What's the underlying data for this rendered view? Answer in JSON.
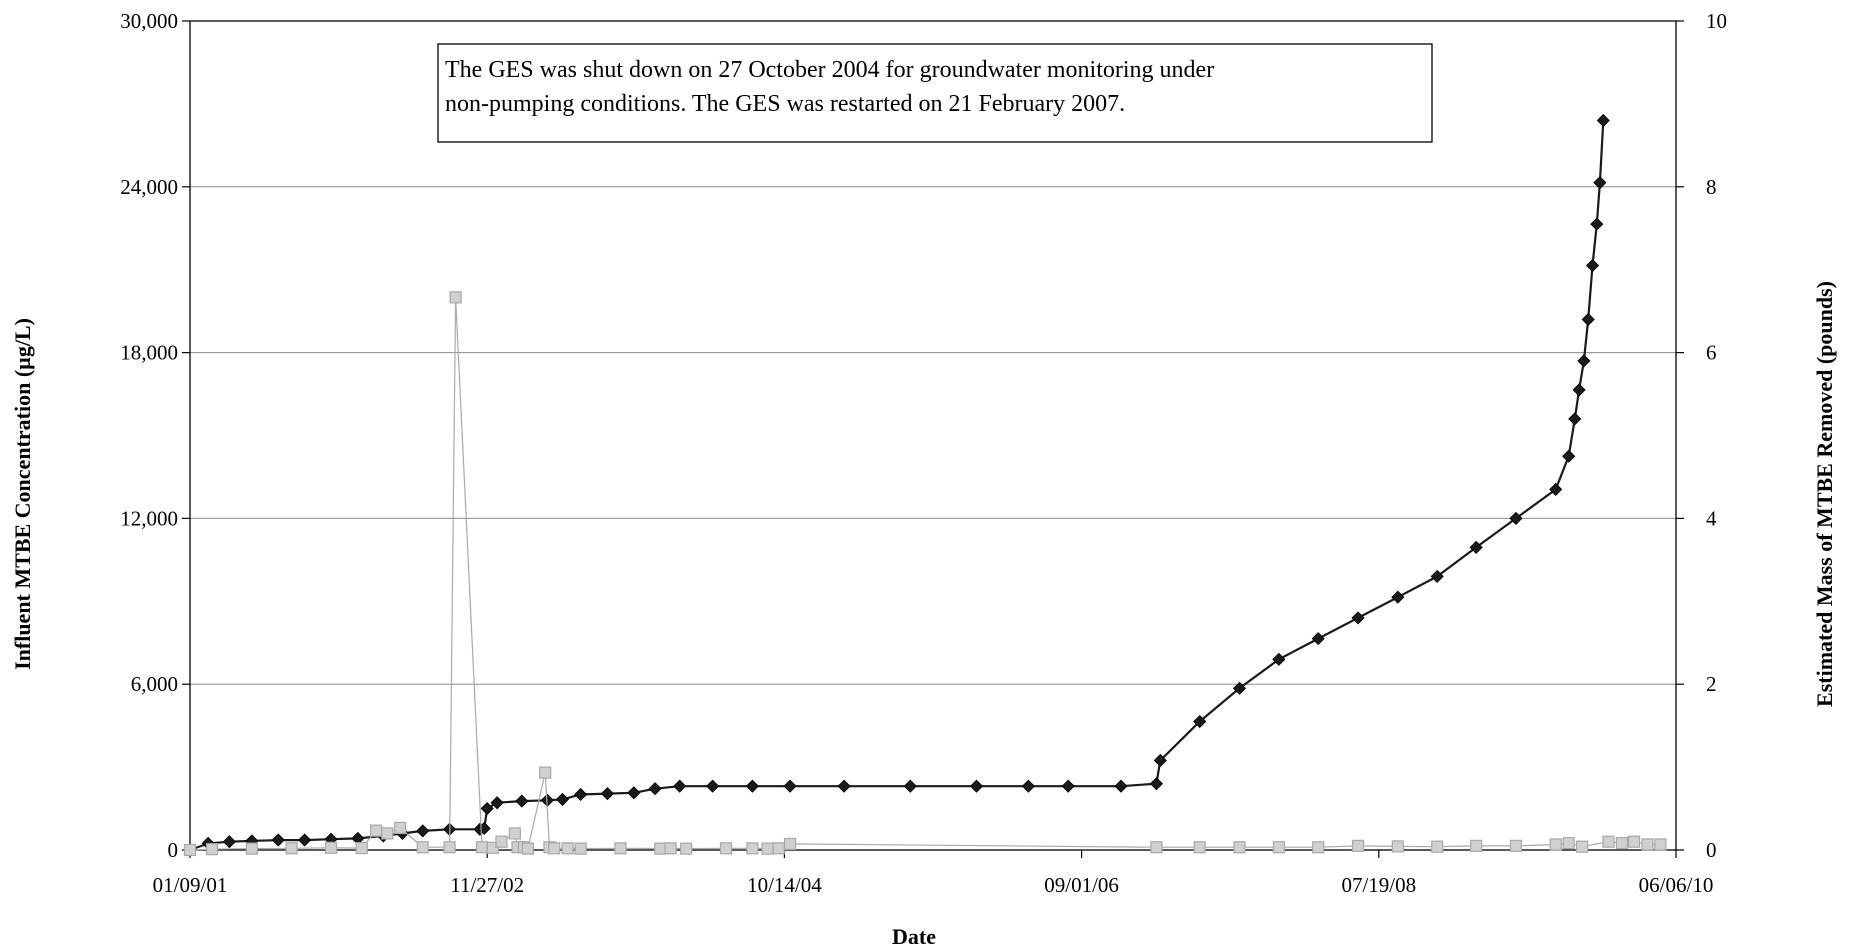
{
  "chart_data": {
    "type": "line",
    "xlabel": "Date",
    "ylabel_left": "Influent MTBE Concentration (µg/L)",
    "ylabel_right": "Estimated Mass of MTBE Removed (pounds)",
    "annotation": [
      "The GES was shut down on 27 October 2004 for groundwater monitoring under",
      "non-pumping conditions. The GES was restarted on 21 February 2007."
    ],
    "x_axis": {
      "type": "date",
      "range": [
        "2001-01-09",
        "2010-06-06"
      ],
      "ticks": [
        {
          "date": "2001-01-09",
          "label": "01/09/01"
        },
        {
          "date": "2002-11-27",
          "label": "11/27/02"
        },
        {
          "date": "2004-10-14",
          "label": "10/14/04"
        },
        {
          "date": "2006-09-01",
          "label": "09/01/06"
        },
        {
          "date": "2008-07-19",
          "label": "07/19/08"
        },
        {
          "date": "2010-06-06",
          "label": "06/06/10"
        }
      ]
    },
    "y_left": {
      "range": [
        0,
        30000
      ],
      "ticks": [
        {
          "value": 0,
          "label": "0"
        },
        {
          "value": 6000,
          "label": "6,000"
        },
        {
          "value": 12000,
          "label": "12,000"
        },
        {
          "value": 18000,
          "label": "18,000"
        },
        {
          "value": 24000,
          "label": "24,000"
        },
        {
          "value": 30000,
          "label": "30,000"
        }
      ]
    },
    "y_right": {
      "range": [
        0,
        10
      ],
      "ticks": [
        {
          "value": 0,
          "label": "0"
        },
        {
          "value": 2,
          "label": "2"
        },
        {
          "value": 4,
          "label": "4"
        },
        {
          "value": 6,
          "label": "6"
        },
        {
          "value": 8,
          "label": "8"
        },
        {
          "value": 10,
          "label": "10"
        }
      ]
    },
    "grid": true,
    "series": [
      {
        "axis": "right",
        "color": "#1a1a1a",
        "marker": "diamond",
        "x": [
          "2001-01-09",
          "2001-02-20",
          "2001-04-10",
          "2001-06-01",
          "2001-08-01",
          "2001-10-01",
          "2001-12-01",
          "2002-02-01",
          "2002-04-01",
          "2002-05-15",
          "2002-07-01",
          "2002-09-01",
          "2002-11-10",
          "2002-11-20",
          "2002-11-27",
          "2002-12-20",
          "2003-02-15",
          "2003-04-15",
          "2003-05-20",
          "2003-07-01",
          "2003-09-01",
          "2003-11-01",
          "2003-12-20",
          "2004-02-15",
          "2004-05-01",
          "2004-08-01",
          "2004-10-27",
          "2005-03-01",
          "2005-08-01",
          "2006-01-01",
          "2006-05-01",
          "2006-08-01",
          "2006-12-01",
          "2007-02-21",
          "2007-03-02",
          "2007-06-01",
          "2007-09-01",
          "2007-12-01",
          "2008-03-01",
          "2008-06-01",
          "2008-09-01",
          "2008-12-01",
          "2009-03-01",
          "2009-06-01",
          "2009-09-01",
          "2009-10-01",
          "2009-10-15",
          "2009-10-25",
          "2009-11-05",
          "2009-11-15",
          "2009-11-25",
          "2009-12-05",
          "2009-12-12",
          "2009-12-20"
        ],
        "y": [
          0.0,
          0.08,
          0.1,
          0.11,
          0.12,
          0.12,
          0.13,
          0.14,
          0.17,
          0.2,
          0.23,
          0.25,
          0.25,
          0.26,
          0.5,
          0.57,
          0.59,
          0.6,
          0.61,
          0.67,
          0.68,
          0.69,
          0.74,
          0.77,
          0.77,
          0.77,
          0.77,
          0.77,
          0.77,
          0.77,
          0.77,
          0.77,
          0.77,
          0.8,
          1.08,
          1.55,
          1.95,
          2.3,
          2.55,
          2.8,
          3.05,
          3.3,
          3.65,
          4.0,
          4.35,
          4.75,
          5.2,
          5.55,
          5.9,
          6.4,
          7.05,
          7.55,
          8.05,
          8.8
        ]
      },
      {
        "axis": "left",
        "color": "#a8a8a8",
        "marker": "square",
        "x": [
          "2001-01-09",
          "2001-03-01",
          "2001-06-01",
          "2001-09-01",
          "2001-12-01",
          "2002-02-10",
          "2002-03-15",
          "2002-04-10",
          "2002-05-10",
          "2002-07-01",
          "2002-09-01",
          "2002-09-15",
          "2002-11-15",
          "2002-12-10",
          "2002-12-30",
          "2003-01-30",
          "2003-02-05",
          "2003-02-20",
          "2003-03-01",
          "2003-04-10",
          "2003-04-20",
          "2003-05-01",
          "2003-06-01",
          "2003-07-01",
          "2003-10-01",
          "2004-01-01",
          "2004-01-25",
          "2004-03-01",
          "2004-06-01",
          "2004-08-01",
          "2004-09-05",
          "2004-10-01",
          "2004-10-27",
          "2007-02-21",
          "2007-06-01",
          "2007-09-01",
          "2007-12-01",
          "2008-03-01",
          "2008-06-01",
          "2008-09-01",
          "2008-12-01",
          "2009-03-01",
          "2009-06-01",
          "2009-09-01",
          "2009-10-01",
          "2009-11-01",
          "2010-01-01",
          "2010-02-01",
          "2010-03-01",
          "2010-04-01",
          "2010-05-01"
        ],
        "y": [
          0,
          30,
          50,
          60,
          80,
          70,
          700,
          600,
          800,
          100,
          100,
          20000,
          100,
          80,
          300,
          600,
          100,
          100,
          50,
          2800,
          100,
          60,
          60,
          50,
          60,
          50,
          60,
          50,
          60,
          60,
          50,
          60,
          220,
          100,
          100,
          100,
          100,
          100,
          150,
          130,
          120,
          150,
          150,
          200,
          250,
          120,
          300,
          250,
          300,
          200,
          200
        ]
      }
    ]
  }
}
